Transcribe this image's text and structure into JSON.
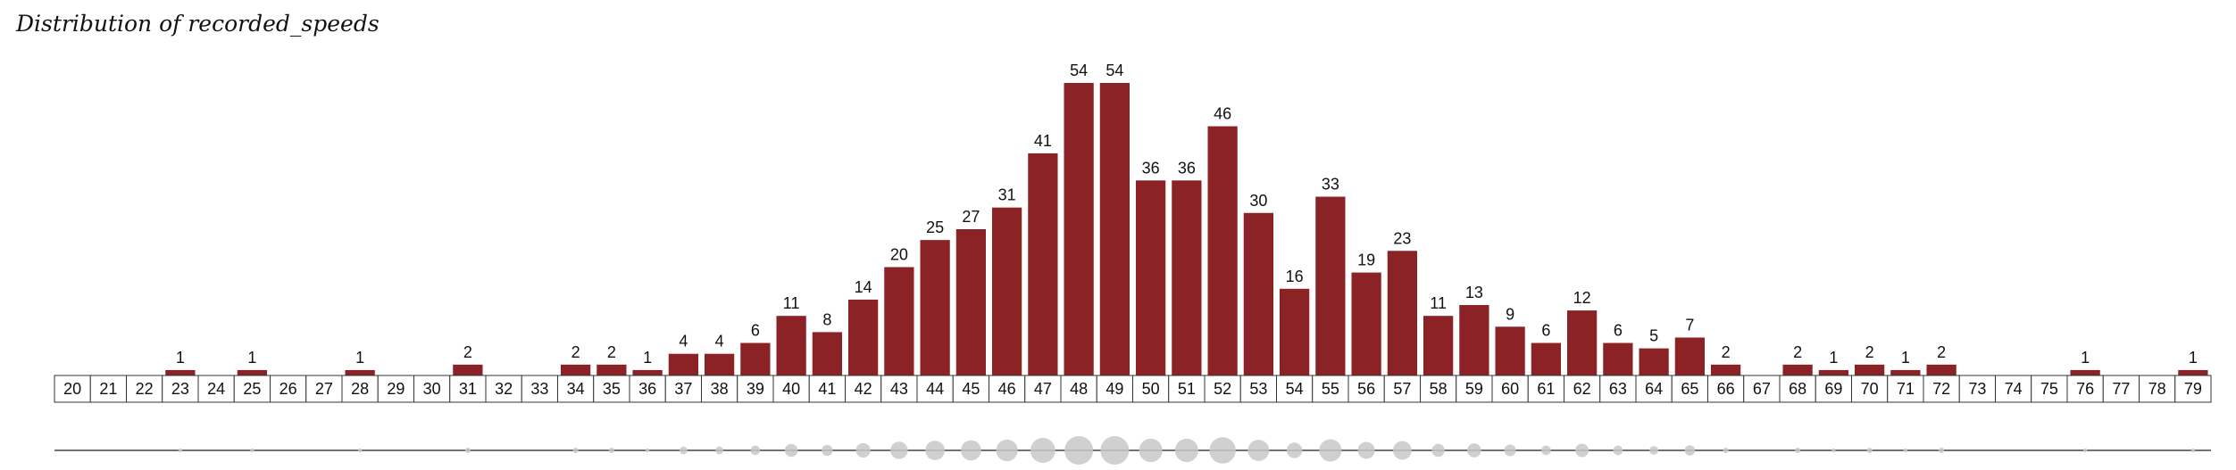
{
  "title": "Distribution of recorded_speeds",
  "colors": {
    "bar": "#8b2226",
    "tick_box_stroke": "#333333",
    "baseline": "#444444",
    "bubble": "#c8c8c8",
    "label_text": "#111111"
  },
  "chart_data": {
    "type": "bar",
    "title": "Distribution of recorded_speeds",
    "xlabel": "",
    "ylabel": "",
    "categories": [
      "20",
      "21",
      "22",
      "23",
      "24",
      "25",
      "26",
      "27",
      "28",
      "29",
      "30",
      "31",
      "32",
      "33",
      "34",
      "35",
      "36",
      "37",
      "38",
      "39",
      "40",
      "41",
      "42",
      "43",
      "44",
      "45",
      "46",
      "47",
      "48",
      "49",
      "50",
      "51",
      "52",
      "53",
      "54",
      "55",
      "56",
      "57",
      "58",
      "59",
      "60",
      "61",
      "62",
      "63",
      "64",
      "65",
      "66",
      "67",
      "68",
      "69",
      "70",
      "71",
      "72",
      "73",
      "74",
      "75",
      "76",
      "77",
      "78",
      "79"
    ],
    "values": [
      0,
      0,
      0,
      1,
      0,
      1,
      0,
      0,
      1,
      0,
      0,
      2,
      0,
      0,
      2,
      2,
      1,
      4,
      4,
      6,
      11,
      8,
      14,
      20,
      25,
      27,
      31,
      41,
      54,
      54,
      36,
      36,
      46,
      30,
      16,
      33,
      19,
      23,
      11,
      13,
      9,
      6,
      12,
      6,
      5,
      7,
      2,
      0,
      2,
      1,
      2,
      1,
      2,
      0,
      0,
      0,
      1,
      0,
      0,
      1
    ],
    "ylim": [
      0,
      54
    ],
    "grid": false,
    "data_labels": true,
    "bubble_strip": true
  }
}
